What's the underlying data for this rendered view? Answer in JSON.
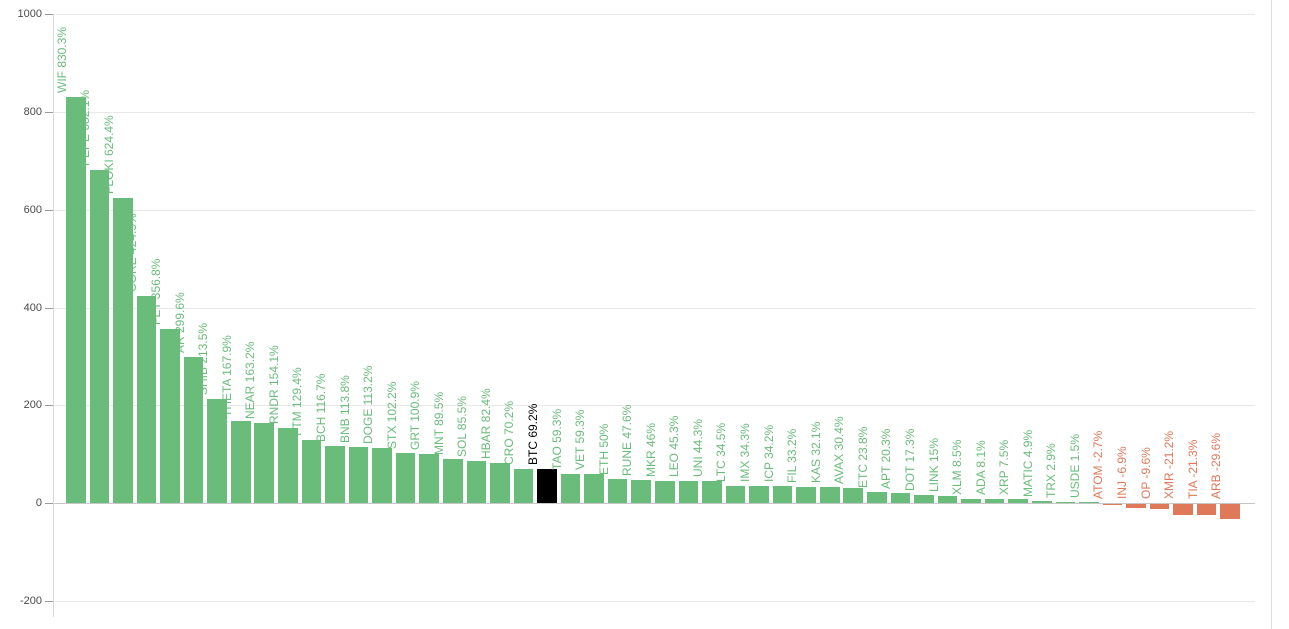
{
  "chart_data": {
    "type": "bar",
    "title": "",
    "xlabel": "",
    "ylabel": "",
    "ylim": [
      -200,
      1000
    ],
    "y_ticks": [
      1000,
      800,
      600,
      400,
      200,
      0,
      -200
    ],
    "grid": true,
    "legend": false,
    "orientation": "vertical",
    "bar_label_position": "above-bar-rotated-90",
    "colors": {
      "positive": "#6abc7b",
      "negative": "#e0785a",
      "highlight": "#000000",
      "axis_label": "#4a4a4a",
      "gridline": "#e8e8e8",
      "zero_line": "#c7c7c7"
    },
    "bars": [
      {
        "symbol": "WIF",
        "value": 830.3,
        "label": "WIF 830.3%"
      },
      {
        "symbol": "PEPE",
        "value": 682.1,
        "label": "PEPE 682.1%"
      },
      {
        "symbol": "FLOKI",
        "value": 624.4,
        "label": "FLOKI 624.4%"
      },
      {
        "symbol": "CORE",
        "value": 424.5,
        "label": "CORE 424.5%"
      },
      {
        "symbol": "FET",
        "value": 356.8,
        "label": "FET 356.8%"
      },
      {
        "symbol": "AR",
        "value": 299.6,
        "label": "AR 299.6%"
      },
      {
        "symbol": "SHIB",
        "value": 213.5,
        "label": "SHIB 213.5%"
      },
      {
        "symbol": "THETA",
        "value": 167.9,
        "label": "THETA 167.9%"
      },
      {
        "symbol": "NEAR",
        "value": 163.2,
        "label": "NEAR 163.2%"
      },
      {
        "symbol": "RNDR",
        "value": 154.1,
        "label": "RNDR 154.1%"
      },
      {
        "symbol": "FTM",
        "value": 129.4,
        "label": "FTM 129.4%"
      },
      {
        "symbol": "BCH",
        "value": 116.7,
        "label": "BCH 116.7%"
      },
      {
        "symbol": "BNB",
        "value": 113.8,
        "label": "BNB 113.8%"
      },
      {
        "symbol": "DOGE",
        "value": 113.2,
        "label": "DOGE 113.2%"
      },
      {
        "symbol": "STX",
        "value": 102.2,
        "label": "STX 102.2%"
      },
      {
        "symbol": "GRT",
        "value": 100.9,
        "label": "GRT 100.9%"
      },
      {
        "symbol": "MNT",
        "value": 89.5,
        "label": "MNT 89.5%"
      },
      {
        "symbol": "SOL",
        "value": 85.5,
        "label": "SOL 85.5%"
      },
      {
        "symbol": "HBAR",
        "value": 82.4,
        "label": "HBAR 82.4%"
      },
      {
        "symbol": "CRO",
        "value": 70.2,
        "label": "CRO 70.2%"
      },
      {
        "symbol": "BTC",
        "value": 69.2,
        "label": "BTC 69.2%",
        "highlight": true
      },
      {
        "symbol": "TAO",
        "value": 59.3,
        "label": "TAO 59.3%"
      },
      {
        "symbol": "VET",
        "value": 59.3,
        "label": "VET 59.3%"
      },
      {
        "symbol": "ETH",
        "value": 50,
        "label": "ETH 50%"
      },
      {
        "symbol": "RUNE",
        "value": 47.6,
        "label": "RUNE 47.6%"
      },
      {
        "symbol": "MKR",
        "value": 46,
        "label": "MKR 46%"
      },
      {
        "symbol": "LEO",
        "value": 45.3,
        "label": "LEO 45.3%"
      },
      {
        "symbol": "UNI",
        "value": 44.3,
        "label": "UNI 44.3%"
      },
      {
        "symbol": "LTC",
        "value": 34.5,
        "label": "LTC 34.5%"
      },
      {
        "symbol": "IMX",
        "value": 34.3,
        "label": "IMX 34.3%"
      },
      {
        "symbol": "ICP",
        "value": 34.2,
        "label": "ICP 34.2%"
      },
      {
        "symbol": "FIL",
        "value": 33.2,
        "label": "FIL 33.2%"
      },
      {
        "symbol": "KAS",
        "value": 32.1,
        "label": "KAS 32.1%"
      },
      {
        "symbol": "AVAX",
        "value": 30.4,
        "label": "AVAX 30.4%"
      },
      {
        "symbol": "ETC",
        "value": 23.8,
        "label": "ETC 23.8%"
      },
      {
        "symbol": "APT",
        "value": 20.3,
        "label": "APT 20.3%"
      },
      {
        "symbol": "DOT",
        "value": 17.3,
        "label": "DOT 17.3%"
      },
      {
        "symbol": "LINK",
        "value": 15,
        "label": "LINK 15%"
      },
      {
        "symbol": "XLM",
        "value": 8.5,
        "label": "XLM 8.5%"
      },
      {
        "symbol": "ADA",
        "value": 8.1,
        "label": "ADA 8.1%"
      },
      {
        "symbol": "XRP",
        "value": 7.5,
        "label": "XRP 7.5%"
      },
      {
        "symbol": "MATIC",
        "value": 4.9,
        "label": "MATIC 4.9%"
      },
      {
        "symbol": "TRX",
        "value": 2.9,
        "label": "TRX 2.9%"
      },
      {
        "symbol": "USDE",
        "value": 1.5,
        "label": "USDE 1.5%"
      },
      {
        "symbol": "ATOM",
        "value": -2.7,
        "label": "ATOM -2.7%"
      },
      {
        "symbol": "INJ",
        "value": -6.9,
        "label": "INJ -6.9%"
      },
      {
        "symbol": "OP",
        "value": -9.6,
        "label": "OP -9.6%"
      },
      {
        "symbol": "XMR",
        "value": -21.2,
        "label": "XMR -21.2%"
      },
      {
        "symbol": "TIA",
        "value": -21.3,
        "label": "TIA -21.3%"
      },
      {
        "symbol": "ARB",
        "value": -29.6,
        "label": "ARB -29.6%"
      }
    ]
  }
}
